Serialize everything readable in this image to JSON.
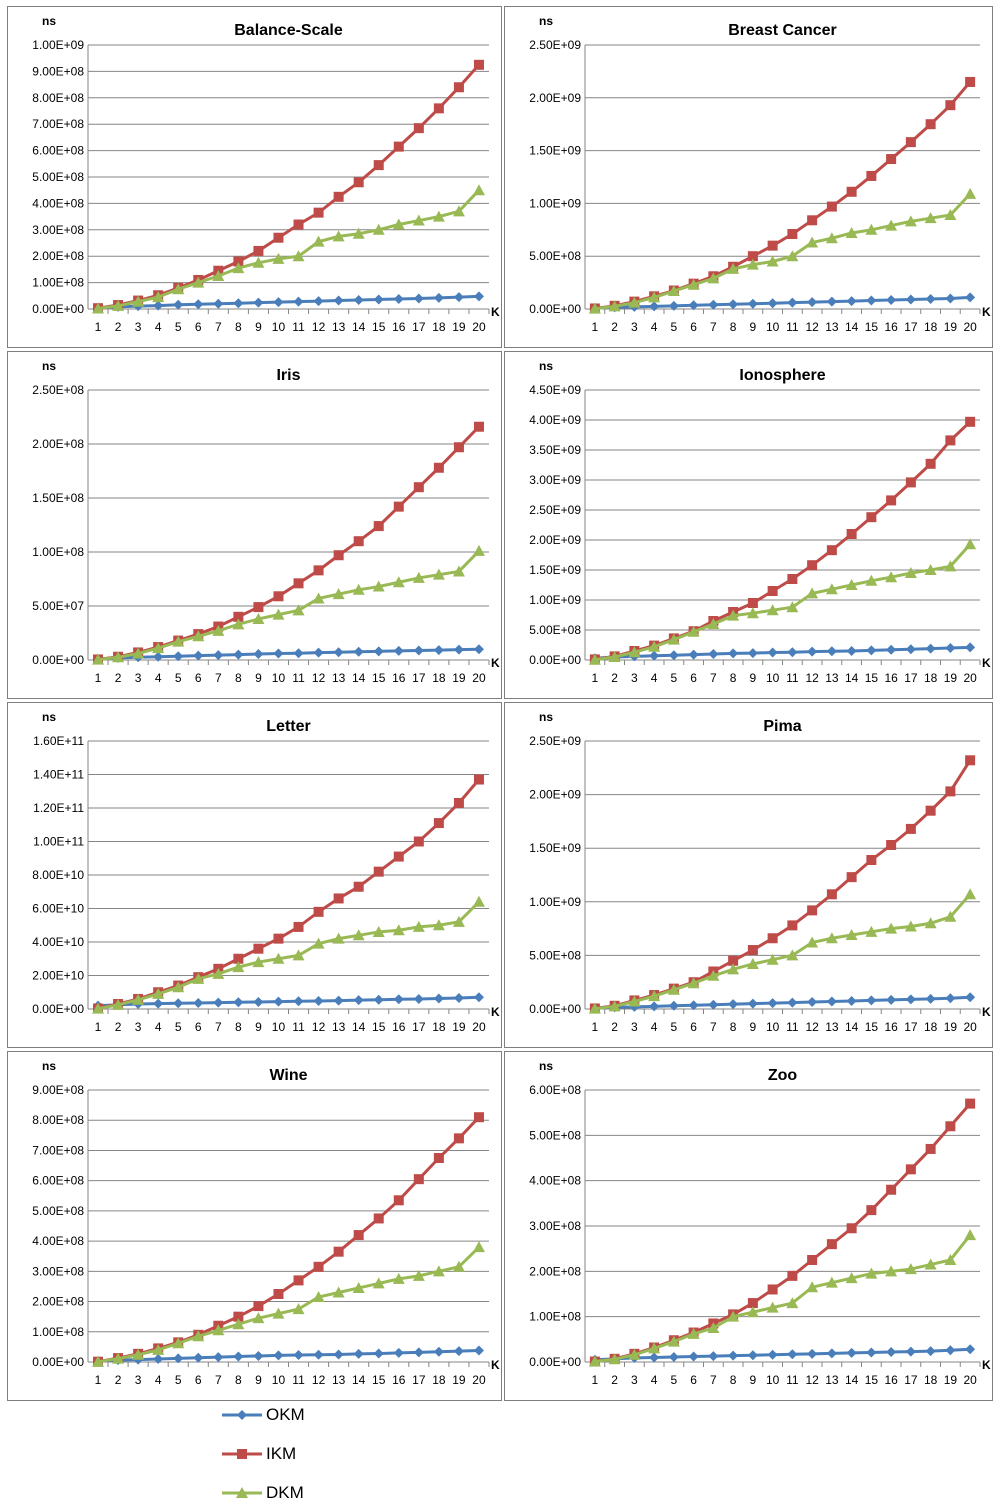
{
  "colors": {
    "OKM": "#4a7ebb",
    "IKM": "#be4b48",
    "DKM": "#98b954"
  },
  "legend": [
    {
      "key": "OKM",
      "label": "OKM",
      "marker": "diamond"
    },
    {
      "key": "IKM",
      "label": "IKM",
      "marker": "square"
    },
    {
      "key": "DKM",
      "label": "DKM",
      "marker": "triangle"
    }
  ],
  "chart_data": [
    {
      "type": "line",
      "title": "Balance-Scale",
      "ylabel": "ns",
      "xlabel": "K",
      "x": [
        1,
        2,
        3,
        4,
        5,
        6,
        7,
        8,
        9,
        10,
        11,
        12,
        13,
        14,
        15,
        16,
        17,
        18,
        19,
        20
      ],
      "ylim": [
        0,
        1000000000
      ],
      "yticks": [
        "0.00E+00",
        "1.00E+08",
        "2.00E+08",
        "3.00E+08",
        "4.00E+08",
        "5.00E+08",
        "6.00E+08",
        "7.00E+08",
        "8.00E+08",
        "9.00E+08",
        "1.00E+09"
      ],
      "series": [
        {
          "name": "OKM",
          "values": [
            5000000.0,
            8000000.0,
            11000000.0,
            13000000.0,
            16000000.0,
            18000000.0,
            20000000.0,
            22000000.0,
            24000000.0,
            26000000.0,
            28000000.0,
            30000000.0,
            32000000.0,
            34000000.0,
            36000000.0,
            38000000.0,
            40000000.0,
            42000000.0,
            45000000.0,
            48000000.0
          ]
        },
        {
          "name": "IKM",
          "values": [
            3000000.0,
            15000000.0,
            32000000.0,
            52000000.0,
            80000000.0,
            110000000.0,
            145000000.0,
            180000000.0,
            220000000.0,
            270000000.0,
            320000000.0,
            365000000.0,
            425000000.0,
            480000000.0,
            545000000.0,
            615000000.0,
            685000000.0,
            760000000.0,
            840000000.0,
            925000000.0
          ]
        },
        {
          "name": "DKM",
          "values": [
            2000000.0,
            12000000.0,
            28000000.0,
            45000000.0,
            75000000.0,
            100000000.0,
            125000000.0,
            155000000.0,
            175000000.0,
            190000000.0,
            200000000.0,
            255000000.0,
            275000000.0,
            285000000.0,
            300000000.0,
            320000000.0,
            335000000.0,
            350000000.0,
            370000000.0,
            450000000.0
          ]
        }
      ]
    },
    {
      "type": "line",
      "title": "Breast Cancer",
      "ylabel": "ns",
      "xlabel": "K",
      "x": [
        1,
        2,
        3,
        4,
        5,
        6,
        7,
        8,
        9,
        10,
        11,
        12,
        13,
        14,
        15,
        16,
        17,
        18,
        19,
        20
      ],
      "ylim": [
        0,
        2500000000
      ],
      "yticks": [
        "0.00E+00",
        "5.00E+08",
        "1.00E+09",
        "1.50E+09",
        "2.00E+09",
        "2.50E+09"
      ],
      "series": [
        {
          "name": "OKM",
          "values": [
            10000000.0,
            15000000.0,
            20000000.0,
            25000000.0,
            30000000.0,
            35000000.0,
            40000000.0,
            45000000.0,
            50000000.0,
            55000000.0,
            60000000.0,
            65000000.0,
            70000000.0,
            75000000.0,
            80000000.0,
            85000000.0,
            90000000.0,
            95000000.0,
            100000000.0,
            110000000.0
          ]
        },
        {
          "name": "IKM",
          "values": [
            5000000.0,
            30000000.0,
            70000000.0,
            120000000.0,
            175000000.0,
            240000000.0,
            310000000.0,
            400000000.0,
            500000000.0,
            600000000.0,
            710000000.0,
            840000000.0,
            970000000.0,
            1110000000.0,
            1260000000.0,
            1420000000.0,
            1580000000.0,
            1750000000.0,
            1930000000.0,
            2150000000.0
          ]
        },
        {
          "name": "DKM",
          "values": [
            3000000.0,
            25000000.0,
            60000000.0,
            110000000.0,
            170000000.0,
            230000000.0,
            290000000.0,
            380000000.0,
            420000000.0,
            450000000.0,
            500000000.0,
            630000000.0,
            670000000.0,
            720000000.0,
            750000000.0,
            790000000.0,
            830000000.0,
            860000000.0,
            890000000.0,
            1090000000.0
          ]
        }
      ]
    },
    {
      "type": "line",
      "title": "Iris",
      "ylabel": "ns",
      "xlabel": "K",
      "x": [
        1,
        2,
        3,
        4,
        5,
        6,
        7,
        8,
        9,
        10,
        11,
        12,
        13,
        14,
        15,
        16,
        17,
        18,
        19,
        20
      ],
      "ylim": [
        0,
        250000000
      ],
      "yticks": [
        "0.00E+00",
        "5.00E+07",
        "1.00E+08",
        "1.50E+08",
        "2.00E+08",
        "2.50E+08"
      ],
      "series": [
        {
          "name": "OKM",
          "values": [
            1000000.0,
            2000000.0,
            2500000.0,
            3000000.0,
            3500000.0,
            4000000.0,
            4500000.0,
            5000000.0,
            5500000.0,
            6000000.0,
            6300000.0,
            6800000.0,
            7200000.0,
            7600000.0,
            8000000.0,
            8400000.0,
            8800000.0,
            9200000.0,
            9600000.0,
            10000000.0
          ]
        },
        {
          "name": "IKM",
          "values": [
            500000.0,
            3000000.0,
            7000000.0,
            12000000.0,
            18000000.0,
            24000000.0,
            31000000.0,
            40000000.0,
            49000000.0,
            59000000.0,
            71000000.0,
            83000000.0,
            97000000.0,
            110000000.0,
            124000000.0,
            142000000.0,
            160000000.0,
            178000000.0,
            197000000.0,
            216000000.0
          ]
        },
        {
          "name": "DKM",
          "values": [
            300000.0,
            2500000.0,
            6000000.0,
            11000000.0,
            17000000.0,
            22000000.0,
            27000000.0,
            33000000.0,
            38000000.0,
            42000000.0,
            46000000.0,
            57000000.0,
            61000000.0,
            65000000.0,
            68000000.0,
            72000000.0,
            76000000.0,
            79000000.0,
            82000000.0,
            101000000.0
          ]
        }
      ]
    },
    {
      "type": "line",
      "title": "Ionosphere",
      "ylabel": "ns",
      "xlabel": "K",
      "x": [
        1,
        2,
        3,
        4,
        5,
        6,
        7,
        8,
        9,
        10,
        11,
        12,
        13,
        14,
        15,
        16,
        17,
        18,
        19,
        20
      ],
      "ylim": [
        0,
        4500000000
      ],
      "yticks": [
        "0.00E+00",
        "5.00E+08",
        "1.00E+09",
        "1.50E+09",
        "2.00E+09",
        "2.50E+09",
        "3.00E+09",
        "3.50E+09",
        "4.00E+09",
        "4.50E+09"
      ],
      "series": [
        {
          "name": "OKM",
          "values": [
            30000000.0,
            50000000.0,
            60000000.0,
            70000000.0,
            80000000.0,
            90000000.0,
            100000000.0,
            110000000.0,
            115000000.0,
            125000000.0,
            130000000.0,
            140000000.0,
            145000000.0,
            150000000.0,
            160000000.0,
            170000000.0,
            180000000.0,
            190000000.0,
            200000000.0,
            210000000.0
          ]
        },
        {
          "name": "IKM",
          "values": [
            10000000.0,
            60000000.0,
            150000000.0,
            240000000.0,
            360000000.0,
            480000000.0,
            650000000.0,
            800000000.0,
            950000000.0,
            1150000000.0,
            1350000000.0,
            1580000000.0,
            1830000000.0,
            2100000000.0,
            2380000000.0,
            2660000000.0,
            2960000000.0,
            3270000000.0,
            3660000000.0,
            3970000000.0
          ]
        },
        {
          "name": "DKM",
          "values": [
            5000000.0,
            50000000.0,
            130000000.0,
            220000000.0,
            340000000.0,
            470000000.0,
            600000000.0,
            740000000.0,
            780000000.0,
            830000000.0,
            880000000.0,
            1110000000.0,
            1180000000.0,
            1250000000.0,
            1320000000.0,
            1380000000.0,
            1450000000.0,
            1500000000.0,
            1560000000.0,
            1930000000.0
          ]
        }
      ]
    },
    {
      "type": "line",
      "title": "Letter",
      "ylabel": "ns",
      "xlabel": "K",
      "x": [
        1,
        2,
        3,
        4,
        5,
        6,
        7,
        8,
        9,
        10,
        11,
        12,
        13,
        14,
        15,
        16,
        17,
        18,
        19,
        20
      ],
      "ylim": [
        0,
        160000000000
      ],
      "yticks": [
        "0.00E+00",
        "2.00E+10",
        "4.00E+10",
        "6.00E+10",
        "8.00E+10",
        "1.00E+11",
        "1.20E+11",
        "1.40E+11",
        "1.60E+11"
      ],
      "series": [
        {
          "name": "OKM",
          "values": [
            2000000000.0,
            2500000000.0,
            3000000000.0,
            3200000000.0,
            3400000000.0,
            3600000000.0,
            3800000000.0,
            4000000000.0,
            4200000000.0,
            4400000000.0,
            4600000000.0,
            4800000000.0,
            5000000000.0,
            5300000000.0,
            5500000000.0,
            5800000000.0,
            6000000000.0,
            6300000000.0,
            6600000000.0,
            7000000000.0
          ]
        },
        {
          "name": "IKM",
          "values": [
            300000000.0,
            3000000000.0,
            6000000000.0,
            10000000000.0,
            14000000000.0,
            19000000000.0,
            24000000000.0,
            30000000000.0,
            36000000000.0,
            42000000000.0,
            49000000000.0,
            58000000000.0,
            66000000000.0,
            73000000000.0,
            82000000000.0,
            91000000000.0,
            100000000000.0,
            111000000000.0,
            123000000000.0,
            137000000000.0
          ]
        },
        {
          "name": "DKM",
          "values": [
            200000000.0,
            2500000000.0,
            5500000000.0,
            9000000000.0,
            13000000000.0,
            18000000000.0,
            21000000000.0,
            25000000000.0,
            28000000000.0,
            30000000000.0,
            32000000000.0,
            39000000000.0,
            42000000000.0,
            44000000000.0,
            46000000000.0,
            47000000000.0,
            49000000000.0,
            50000000000.0,
            52000000000.0,
            64000000000.0
          ]
        }
      ]
    },
    {
      "type": "line",
      "title": "Pima",
      "ylabel": "ns",
      "xlabel": "K",
      "x": [
        1,
        2,
        3,
        4,
        5,
        6,
        7,
        8,
        9,
        10,
        11,
        12,
        13,
        14,
        15,
        16,
        17,
        18,
        19,
        20
      ],
      "ylim": [
        0,
        2500000000
      ],
      "yticks": [
        "0.00E+00",
        "5.00E+08",
        "1.00E+09",
        "1.50E+09",
        "2.00E+09",
        "2.50E+09"
      ],
      "series": [
        {
          "name": "OKM",
          "values": [
            10000000.0,
            15000000.0,
            20000000.0,
            25000000.0,
            30000000.0,
            35000000.0,
            40000000.0,
            45000000.0,
            50000000.0,
            55000000.0,
            60000000.0,
            65000000.0,
            70000000.0,
            75000000.0,
            80000000.0,
            85000000.0,
            90000000.0,
            95000000.0,
            100000000.0,
            110000000.0
          ]
        },
        {
          "name": "IKM",
          "values": [
            5000000.0,
            30000000.0,
            80000000.0,
            130000000.0,
            190000000.0,
            250000000.0,
            350000000.0,
            450000000.0,
            550000000.0,
            660000000.0,
            780000000.0,
            920000000.0,
            1070000000.0,
            1230000000.0,
            1390000000.0,
            1530000000.0,
            1680000000.0,
            1850000000.0,
            2030000000.0,
            2320000000.0
          ]
        },
        {
          "name": "DKM",
          "values": [
            3000000.0,
            25000000.0,
            70000000.0,
            120000000.0,
            180000000.0,
            240000000.0,
            310000000.0,
            370000000.0,
            420000000.0,
            460000000.0,
            500000000.0,
            620000000.0,
            660000000.0,
            690000000.0,
            720000000.0,
            750000000.0,
            770000000.0,
            800000000.0,
            860000000.0,
            1070000000.0
          ]
        }
      ]
    },
    {
      "type": "line",
      "title": "Wine",
      "ylabel": "ns",
      "xlabel": "K",
      "x": [
        1,
        2,
        3,
        4,
        5,
        6,
        7,
        8,
        9,
        10,
        11,
        12,
        13,
        14,
        15,
        16,
        17,
        18,
        19,
        20
      ],
      "ylim": [
        0,
        900000000
      ],
      "yticks": [
        "0.00E+00",
        "1.00E+08",
        "2.00E+08",
        "3.00E+08",
        "4.00E+08",
        "5.00E+08",
        "6.00E+08",
        "7.00E+08",
        "8.00E+08",
        "9.00E+08"
      ],
      "series": [
        {
          "name": "OKM",
          "values": [
            3000000.0,
            6000000.0,
            8000000.0,
            10000000.0,
            12000000.0,
            14000000.0,
            16000000.0,
            18000000.0,
            20000000.0,
            22000000.0,
            23000000.0,
            24000000.0,
            25000000.0,
            27000000.0,
            28000000.0,
            30000000.0,
            32000000.0,
            34000000.0,
            36000000.0,
            38000000.0
          ]
        },
        {
          "name": "IKM",
          "values": [
            1000000.0,
            13000000.0,
            27000000.0,
            45000000.0,
            65000000.0,
            90000000.0,
            120000000.0,
            150000000.0,
            185000000.0,
            225000000.0,
            270000000.0,
            315000000.0,
            365000000.0,
            420000000.0,
            475000000.0,
            535000000.0,
            605000000.0,
            675000000.0,
            740000000.0,
            810000000.0
          ]
        },
        {
          "name": "DKM",
          "values": [
            1000000.0,
            11000000.0,
            24000000.0,
            40000000.0,
            62000000.0,
            85000000.0,
            105000000.0,
            125000000.0,
            145000000.0,
            160000000.0,
            175000000.0,
            215000000.0,
            230000000.0,
            245000000.0,
            260000000.0,
            275000000.0,
            285000000.0,
            300000000.0,
            315000000.0,
            380000000.0
          ]
        }
      ]
    },
    {
      "type": "line",
      "title": "Zoo",
      "ylabel": "ns",
      "xlabel": "K",
      "x": [
        1,
        2,
        3,
        4,
        5,
        6,
        7,
        8,
        9,
        10,
        11,
        12,
        13,
        14,
        15,
        16,
        17,
        18,
        19,
        20
      ],
      "ylim": [
        0,
        600000000
      ],
      "yticks": [
        "0.00E+00",
        "1.00E+08",
        "2.00E+08",
        "3.00E+08",
        "4.00E+08",
        "5.00E+08",
        "6.00E+08"
      ],
      "series": [
        {
          "name": "OKM",
          "values": [
            5000000.0,
            7000000.0,
            9000000.0,
            10000000.0,
            11000000.0,
            12000000.0,
            13000000.0,
            14000000.0,
            15000000.0,
            16000000.0,
            17000000.0,
            18000000.0,
            19000000.0,
            20000000.0,
            21000000.0,
            22000000.0,
            23000000.0,
            24000000.0,
            26000000.0,
            28000000.0
          ]
        },
        {
          "name": "IKM",
          "values": [
            1000000.0,
            7000000.0,
            18000000.0,
            32000000.0,
            48000000.0,
            65000000.0,
            85000000.0,
            105000000.0,
            130000000.0,
            160000000.0,
            190000000.0,
            225000000.0,
            260000000.0,
            295000000.0,
            335000000.0,
            380000000.0,
            425000000.0,
            470000000.0,
            520000000.0,
            570000000.0
          ]
        },
        {
          "name": "DKM",
          "values": [
            1000000.0,
            6000000.0,
            16000000.0,
            30000000.0,
            45000000.0,
            62000000.0,
            75000000.0,
            100000000.0,
            110000000.0,
            120000000.0,
            130000000.0,
            165000000.0,
            175000000.0,
            185000000.0,
            195000000.0,
            200000000.0,
            205000000.0,
            215000000.0,
            225000000.0,
            280000000.0
          ]
        }
      ]
    }
  ]
}
